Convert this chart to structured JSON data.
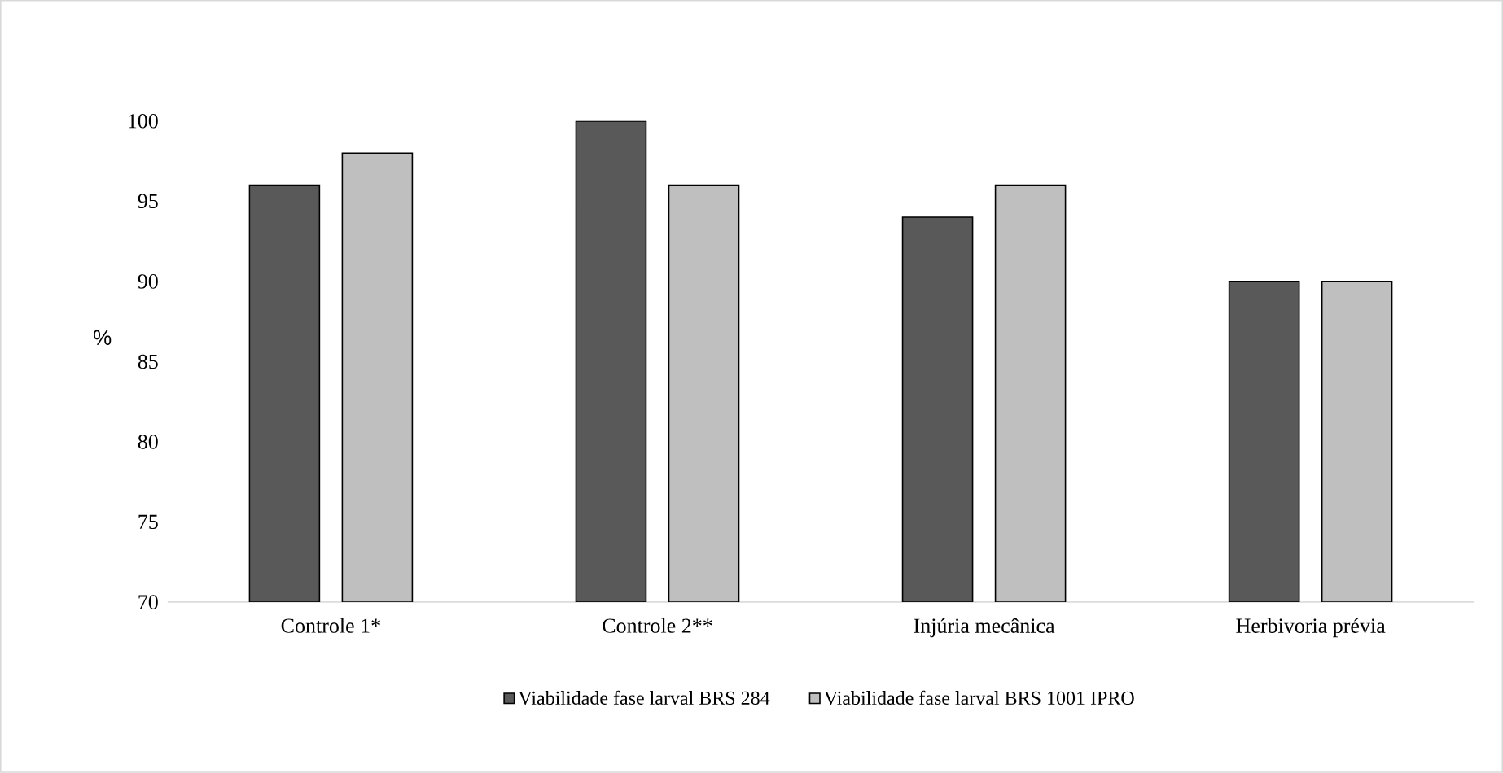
{
  "chart_data": {
    "type": "bar",
    "ylabel": "%",
    "categories": [
      "Controle 1*",
      "Controle 2**",
      "Injúria mecânica",
      "Herbivoria prévia"
    ],
    "series": [
      {
        "name": "Viabilidade fase larval  BRS 284",
        "color": "#595959",
        "values": [
          96,
          100,
          94,
          90
        ]
      },
      {
        "name": "Viabilidade fase larval  BRS 1001 IPRO",
        "color": "#bfbfbf",
        "values": [
          98,
          96,
          96,
          90
        ]
      }
    ],
    "ylim": [
      70,
      100
    ],
    "yticks": [
      70,
      75,
      80,
      85,
      90,
      95,
      100
    ],
    "grid": false,
    "legend": "bottom"
  }
}
